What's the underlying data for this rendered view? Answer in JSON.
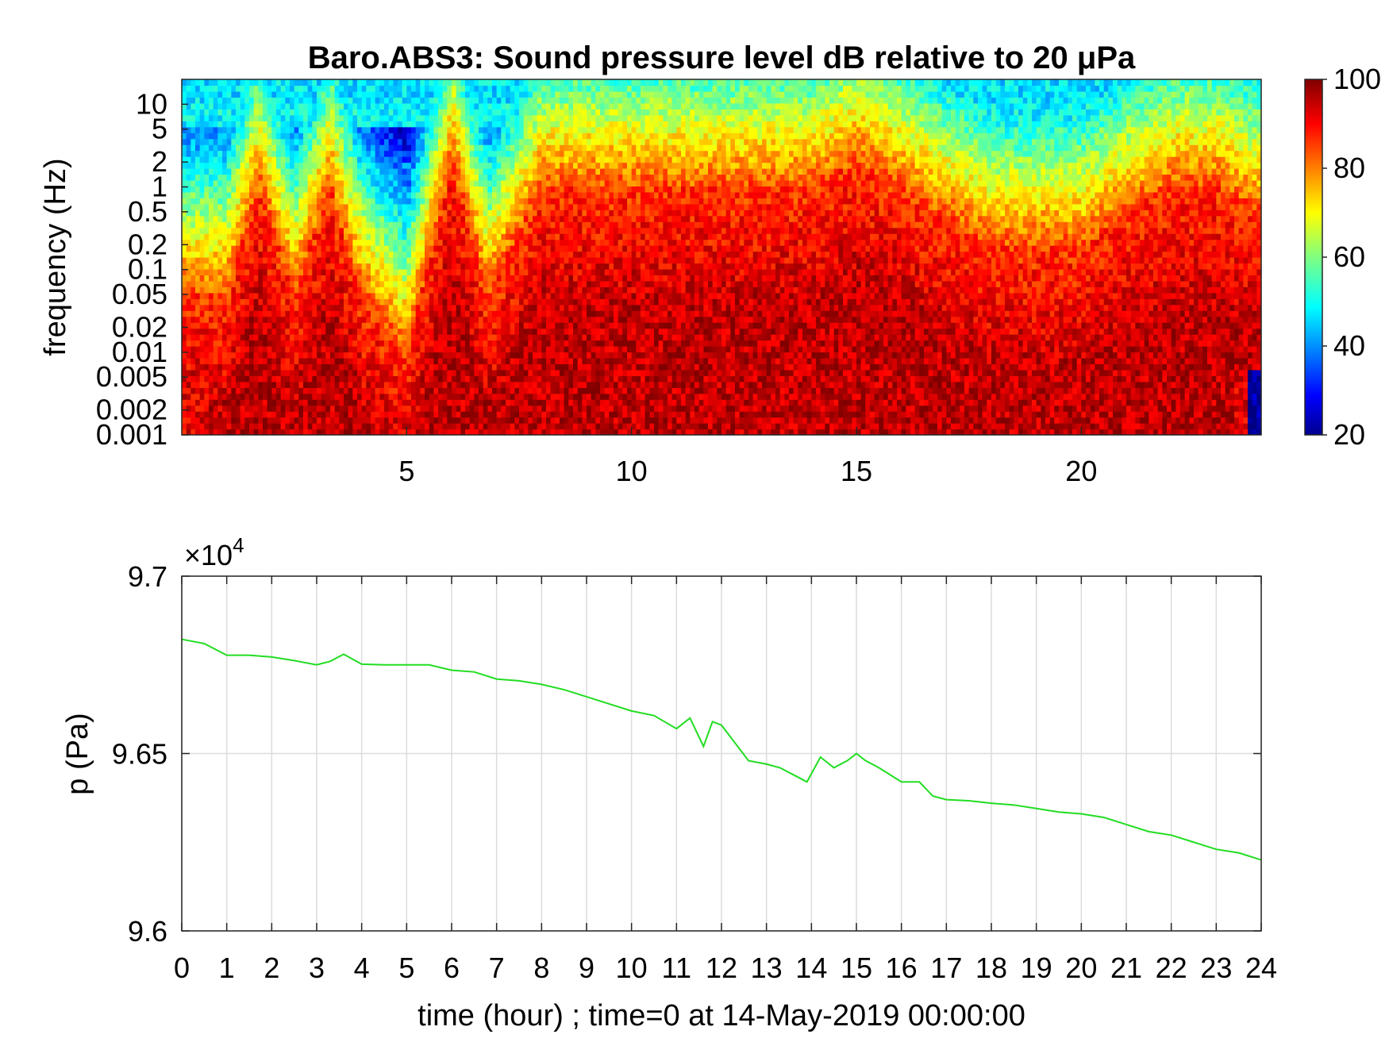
{
  "chart_data": [
    {
      "type": "heatmap",
      "title": "Baro.ABS3: Sound pressure level dB relative to 20 μPa",
      "ylabel": "frequency (Hz)",
      "xlabel": "",
      "x_ticks": [
        "5",
        "10",
        "15",
        "20"
      ],
      "x_tick_values": [
        5,
        10,
        15,
        20
      ],
      "xlim": [
        0,
        24
      ],
      "y_scale": "log",
      "ylim": [
        0.001,
        20
      ],
      "y_ticks": [
        "10",
        "5",
        "2",
        "1",
        "0.5",
        "0.2",
        "0.1",
        "0.05",
        "0.02",
        "0.01",
        "0.005",
        "0.002",
        "0.001"
      ],
      "y_tick_values": [
        10,
        5,
        2,
        1,
        0.5,
        0.2,
        0.1,
        0.05,
        0.02,
        0.01,
        0.005,
        0.002,
        0.001
      ],
      "colorbar": {
        "colormap": "jet",
        "range": [
          20,
          100
        ],
        "ticks": [
          "100",
          "80",
          "60",
          "40",
          "20"
        ],
        "tick_values": [
          100,
          80,
          60,
          40,
          20
        ]
      },
      "z_summary": {
        "time_hours": [
          0,
          1,
          1.7,
          2.5,
          3.3,
          4,
          5,
          6,
          6.8,
          8,
          9,
          10,
          11,
          12,
          13,
          14,
          15,
          16,
          16.8,
          18,
          19,
          20,
          21,
          22,
          23,
          24
        ],
        "top_freq_Hz_of_high_level_band": [
          0.05,
          0.05,
          1,
          0.05,
          1,
          0.05,
          0.01,
          2,
          0.05,
          1,
          1,
          1,
          1,
          1,
          1,
          1,
          2,
          1,
          0.5,
          0.2,
          0.2,
          0.2,
          0.5,
          1,
          1,
          0.5
        ]
      }
    },
    {
      "type": "line",
      "ylabel": "p (Pa)",
      "xlabel": "time (hour) ; time=0 at 14-May-2019 00:00:00",
      "y_exponent_label": "×10",
      "y_exponent_power": "4",
      "xlim": [
        0,
        24
      ],
      "ylim": [
        96000,
        97000
      ],
      "x_ticks": [
        "0",
        "1",
        "2",
        "3",
        "4",
        "5",
        "6",
        "7",
        "8",
        "9",
        "10",
        "11",
        "12",
        "13",
        "14",
        "15",
        "16",
        "17",
        "18",
        "19",
        "20",
        "21",
        "22",
        "23",
        "24"
      ],
      "x_tick_values": [
        0,
        1,
        2,
        3,
        4,
        5,
        6,
        7,
        8,
        9,
        10,
        11,
        12,
        13,
        14,
        15,
        16,
        17,
        18,
        19,
        20,
        21,
        22,
        23,
        24
      ],
      "y_ticks": [
        "9.6",
        "9.65",
        "9.7"
      ],
      "y_tick_values": [
        96000,
        96500,
        97000
      ],
      "grid": true,
      "series": [
        {
          "color": "#22dd22",
          "x": [
            0,
            0.5,
            1,
            1.5,
            2,
            2.5,
            3,
            3.3,
            3.6,
            4,
            4.5,
            5,
            5.5,
            6,
            6.5,
            7,
            7.5,
            8,
            8.5,
            9,
            9.5,
            10,
            10.5,
            11,
            11.3,
            11.6,
            11.8,
            12,
            12.3,
            12.6,
            13,
            13.3,
            13.6,
            13.9,
            14.2,
            14.5,
            14.8,
            15,
            15.2,
            15.5,
            16,
            16.4,
            16.7,
            17,
            17.5,
            18,
            18.5,
            19,
            19.5,
            20,
            20.5,
            21,
            21.5,
            22,
            22.5,
            23,
            23.5,
            24
          ],
          "y": [
            96822,
            96810,
            96777,
            96777,
            96772,
            96762,
            96750,
            96760,
            96780,
            96752,
            96750,
            96750,
            96750,
            96735,
            96730,
            96710,
            96705,
            96695,
            96680,
            96660,
            96640,
            96620,
            96607,
            96570,
            96600,
            96520,
            96590,
            96580,
            96530,
            96480,
            96470,
            96460,
            96440,
            96420,
            96490,
            96460,
            96480,
            96500,
            96480,
            96460,
            96420,
            96420,
            96380,
            96370,
            96367,
            96360,
            96355,
            96345,
            96335,
            96330,
            96320,
            96300,
            96280,
            96270,
            96250,
            96230,
            96220,
            96200
          ]
        }
      ]
    }
  ]
}
